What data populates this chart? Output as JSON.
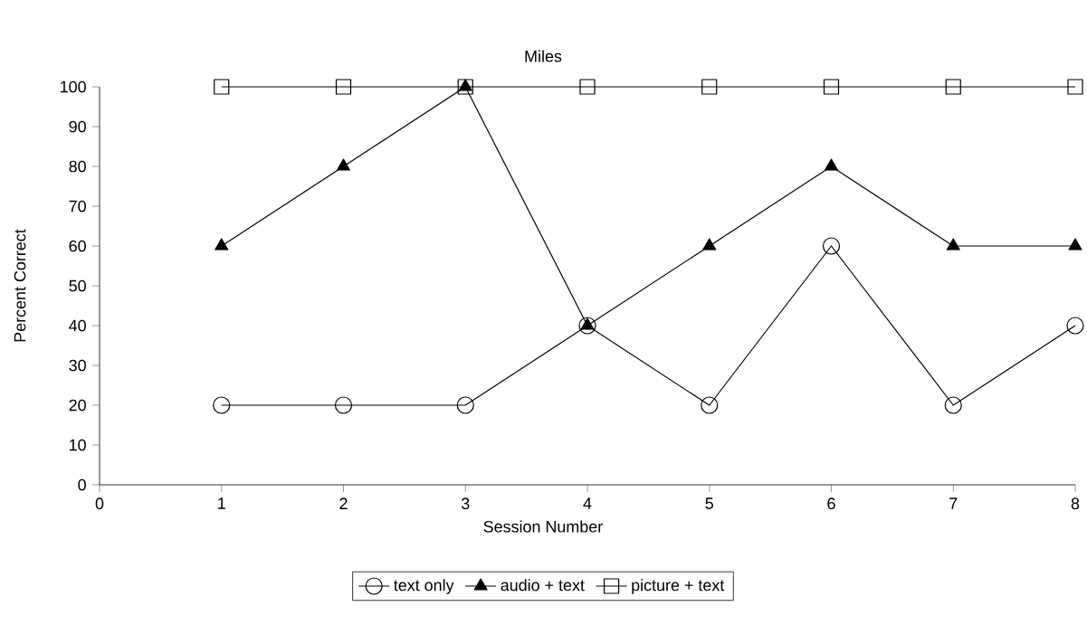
{
  "chart_data": {
    "type": "line",
    "title": "Miles",
    "xlabel": "Session Number",
    "ylabel": "Percent Correct",
    "x": [
      1,
      2,
      3,
      4,
      5,
      6,
      7,
      8
    ],
    "series": [
      {
        "name": "text only",
        "color": "#000000",
        "marker": "circle",
        "values": [
          20,
          20,
          20,
          40,
          20,
          60,
          20,
          40
        ]
      },
      {
        "name": "audio + text",
        "color": "#000000",
        "marker": "triangle",
        "values": [
          60,
          80,
          100,
          40,
          60,
          80,
          60,
          60
        ]
      },
      {
        "name": "picture + text",
        "color": "#000000",
        "marker": "square",
        "values": [
          100,
          100,
          100,
          100,
          100,
          100,
          100,
          100
        ]
      }
    ],
    "xlim": [
      0,
      8
    ],
    "xticks": [
      0,
      1,
      2,
      3,
      4,
      5,
      6,
      7,
      8
    ],
    "ylim": [
      0,
      100
    ],
    "yticks": [
      0,
      10,
      20,
      30,
      40,
      50,
      60,
      70,
      80,
      90,
      100
    ],
    "grid": false,
    "legend": "bottom",
    "line_style": "solid"
  }
}
